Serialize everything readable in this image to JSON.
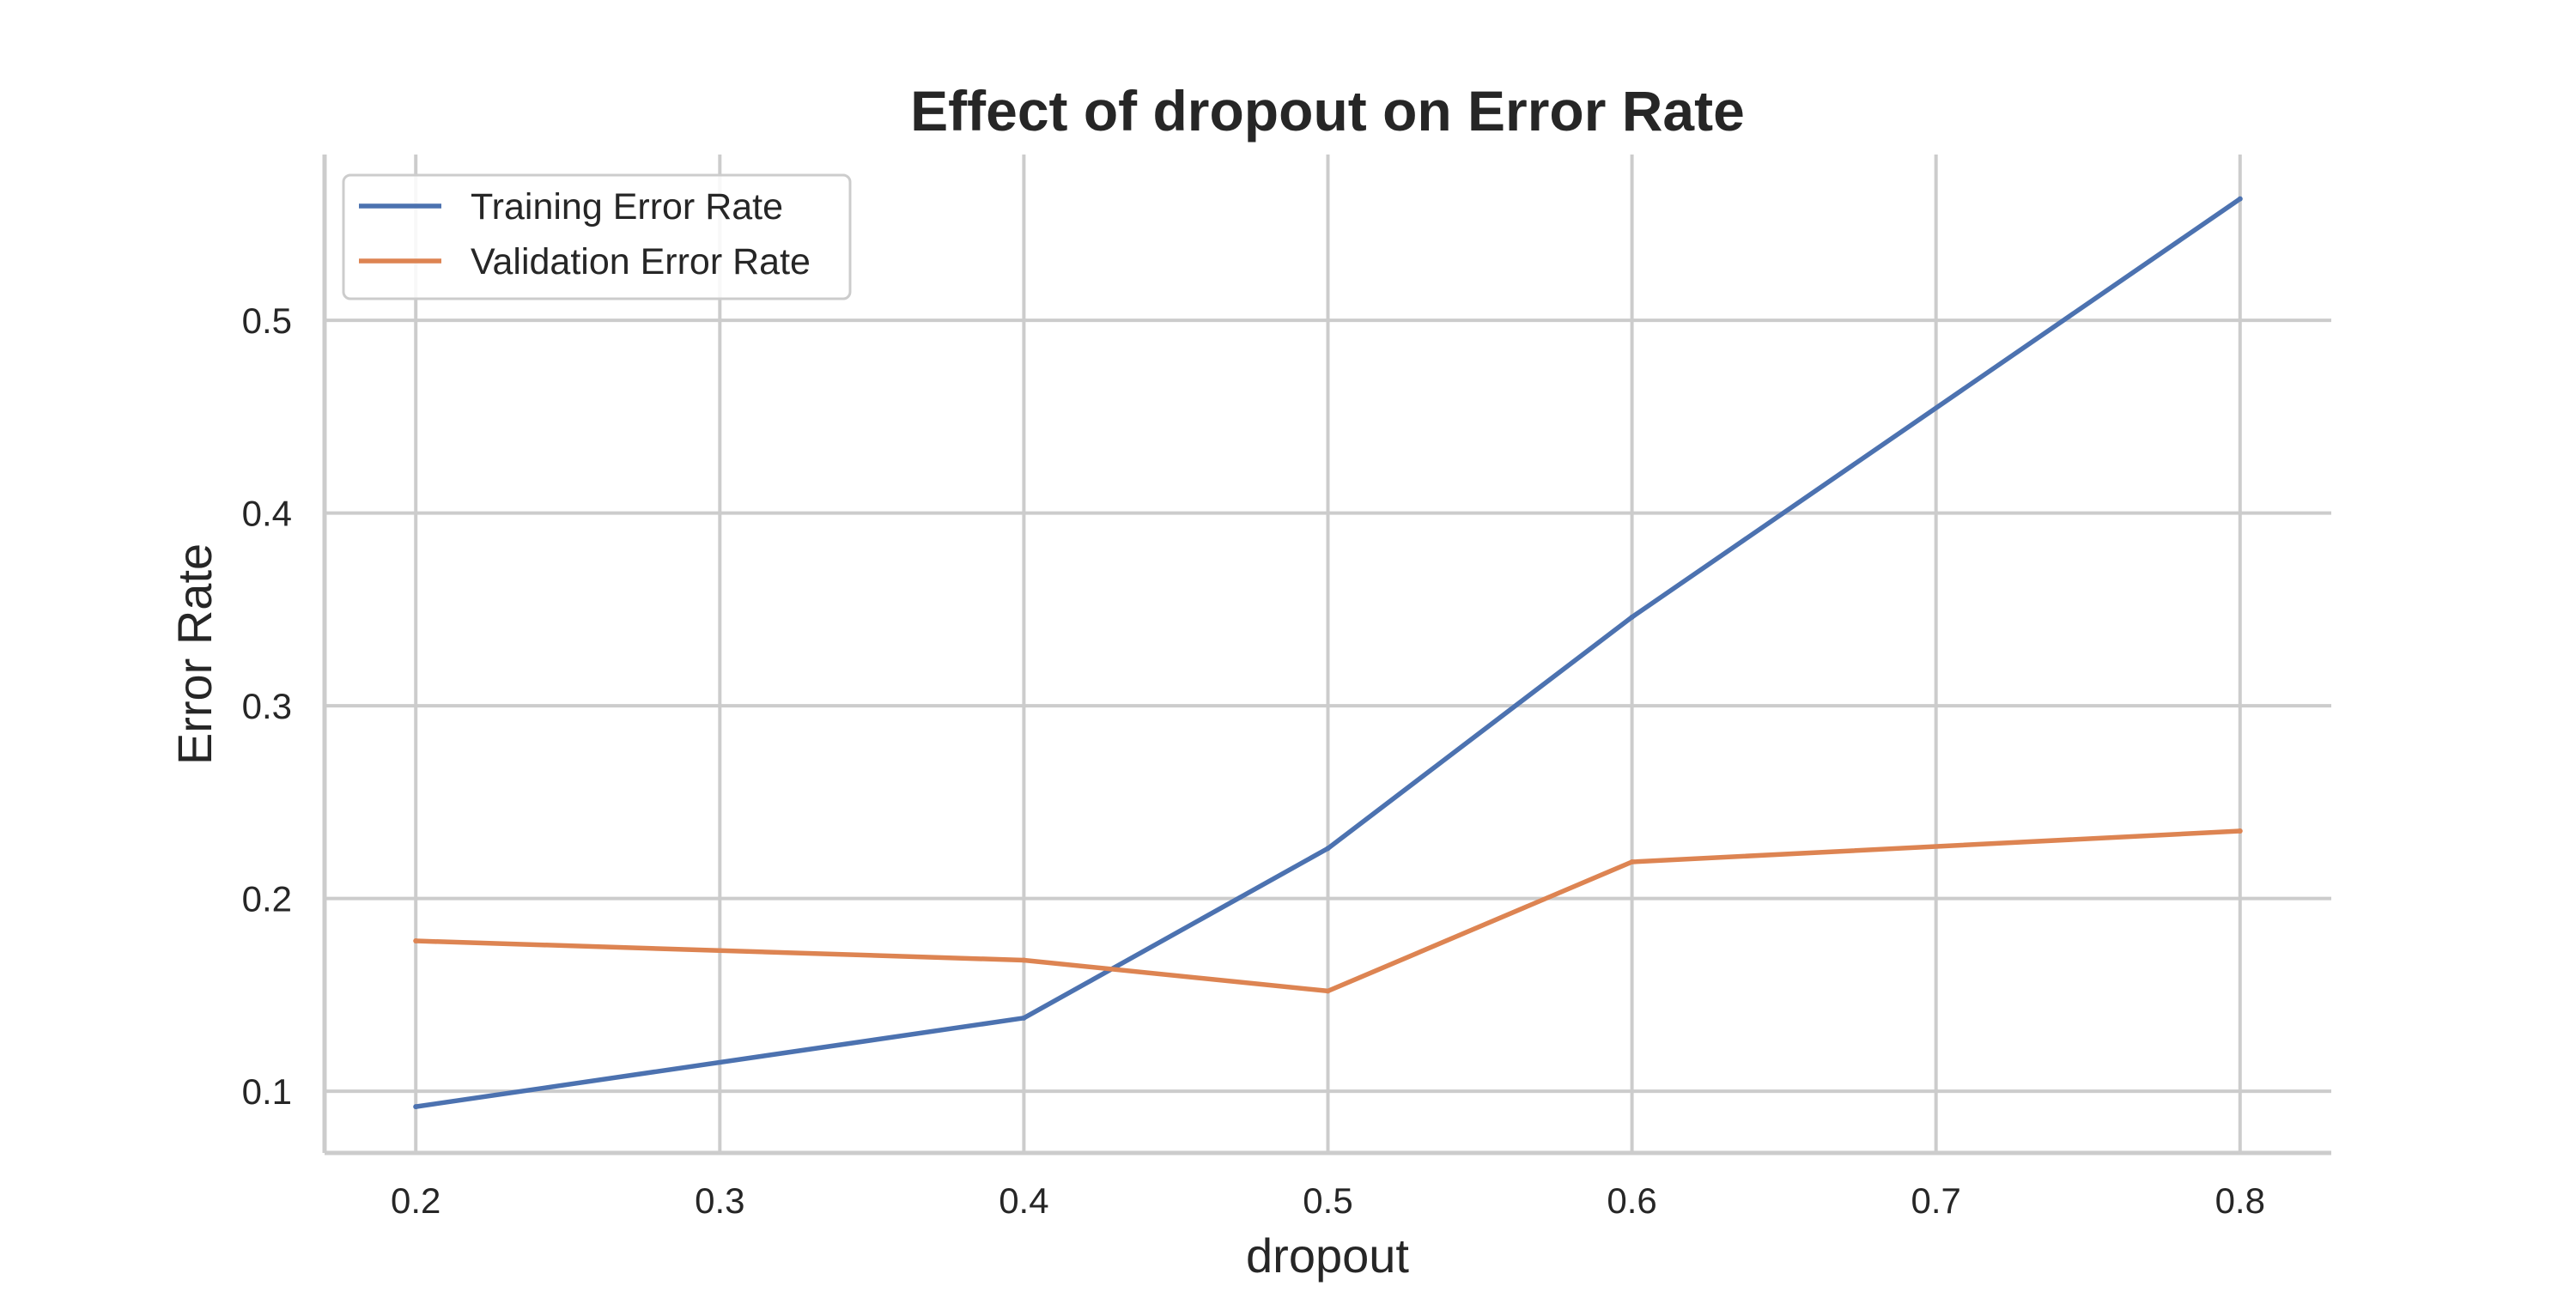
{
  "chart_data": {
    "type": "line",
    "title": "Effect of dropout on Error Rate",
    "xlabel": "dropout",
    "ylabel": "Error Rate",
    "x": [
      0.2,
      0.4,
      0.5,
      0.6,
      0.8
    ],
    "xticks": [
      "0.2",
      "0.3",
      "0.4",
      "0.5",
      "0.6",
      "0.7",
      "0.8"
    ],
    "xtick_values": [
      0.2,
      0.3,
      0.4,
      0.5,
      0.6,
      0.7,
      0.8
    ],
    "yticks": [
      "0.1",
      "0.2",
      "0.3",
      "0.4",
      "0.5"
    ],
    "ytick_values": [
      0.1,
      0.2,
      0.3,
      0.4,
      0.5
    ],
    "xlim": [
      0.17,
      0.83
    ],
    "ylim": [
      0.068,
      0.586
    ],
    "grid": true,
    "legend_position": "top-left",
    "series": [
      {
        "name": "Training Error Rate",
        "color": "#4c72b0",
        "values": [
          0.092,
          0.138,
          0.226,
          0.346,
          0.563
        ]
      },
      {
        "name": "Validation Error Rate",
        "color": "#dd8452",
        "values": [
          0.178,
          0.168,
          0.152,
          0.219,
          0.235
        ]
      }
    ]
  }
}
